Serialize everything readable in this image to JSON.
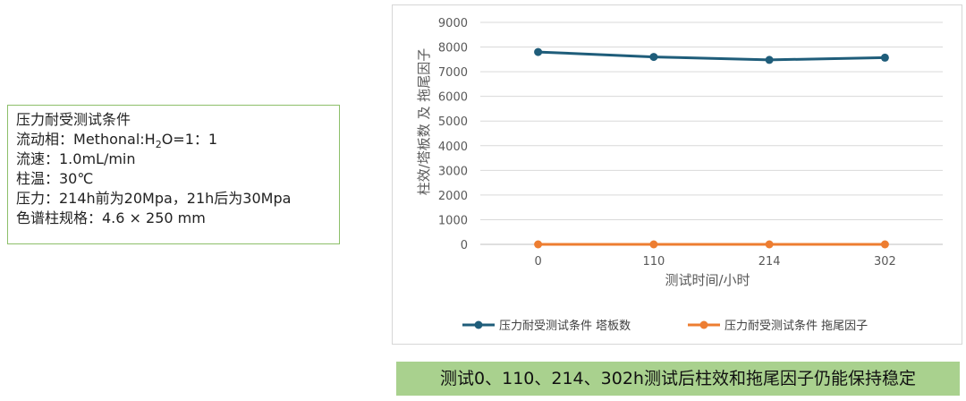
{
  "conditions": {
    "title": "压力耐受测试条件",
    "mobile_phase_label": "流动相：",
    "mobile_phase_pre": "Methonal:H",
    "mobile_phase_sub": "2",
    "mobile_phase_post": "O=1：1",
    "flow_rate": "流速：1.0mL/min",
    "column_temp": "柱温：30℃",
    "pressure": "压力：214h前为20Mpa，21h后为30Mpa",
    "column_spec": "色谱柱规格：4.6 × 250 mm"
  },
  "chart_data": {
    "type": "line",
    "categories": [
      "0",
      "110",
      "214",
      "302"
    ],
    "series": [
      {
        "name": "压力耐受测试条件 塔板数",
        "values": [
          7800,
          7600,
          7480,
          7570
        ],
        "color": "#1f5d7a"
      },
      {
        "name": "压力耐受测试条件 拖尾因子",
        "values": [
          0,
          0,
          0,
          0
        ],
        "color": "#ed7d31"
      }
    ],
    "yticks": [
      "0",
      "1000",
      "2000",
      "3000",
      "4000",
      "5000",
      "6000",
      "7000",
      "8000",
      "9000"
    ],
    "ylim": [
      0,
      9000
    ],
    "xlabel": "测试时间/小时",
    "ylabel": "柱效/塔板数 及 拖尾因子",
    "grid": true,
    "legend_position": "bottom"
  },
  "banner": "测试0、110、214、302h测试后柱效和拖尾因子仍能保持稳定"
}
